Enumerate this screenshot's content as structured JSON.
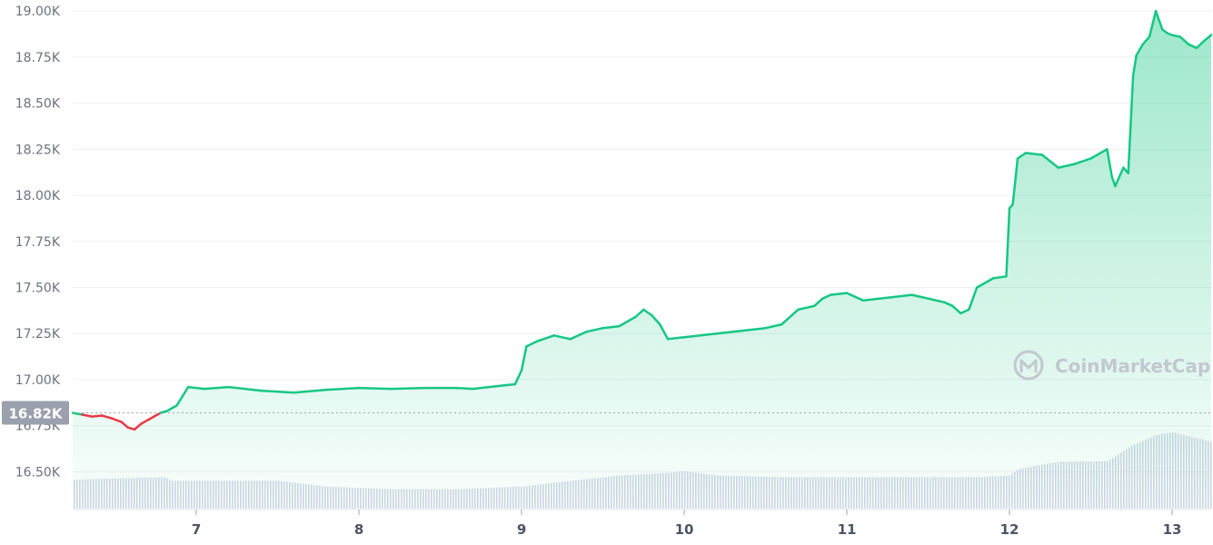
{
  "chart_data": {
    "type": "area",
    "title": "",
    "xlabel": "",
    "ylabel": "",
    "ylim": [
      16300,
      19060
    ],
    "y_ticks": [
      16500,
      16750,
      17000,
      17250,
      17500,
      17750,
      18000,
      18250,
      18500,
      18750,
      19000
    ],
    "y_tick_labels": [
      "16.50K",
      "16.75K",
      "17.00K",
      "17.25K",
      "17.50K",
      "17.75K",
      "18.00K",
      "18.25K",
      "18.50K",
      "18.75K",
      "19.00K"
    ],
    "x_range": [
      6.24,
      13.24
    ],
    "x_ticks": [
      7,
      8,
      9,
      10,
      11,
      12,
      13
    ],
    "x_tick_labels": [
      "7",
      "8",
      "9",
      "10",
      "11",
      "12",
      "13"
    ],
    "reference_value": 16820,
    "reference_label": "16.82K",
    "watermark": "CoinMarketCap",
    "grid": true,
    "colors": {
      "up": "#16c784",
      "down": "#ea3943",
      "volume": "#cfd6e4",
      "grid": "#eef0f3"
    },
    "series": [
      {
        "x": [
          6.24,
          6.3,
          6.36,
          6.42,
          6.48,
          6.54,
          6.58,
          6.62,
          6.66,
          6.7,
          6.74,
          6.78,
          6.82,
          6.88,
          6.95,
          7.05,
          7.2,
          7.4,
          7.6,
          7.8,
          8.0,
          8.2,
          8.4,
          8.6,
          8.7,
          8.8,
          8.9,
          8.96,
          9.0,
          9.03,
          9.1,
          9.2,
          9.3,
          9.4,
          9.5,
          9.6,
          9.7,
          9.75,
          9.8,
          9.85,
          9.9,
          10.0,
          10.1,
          10.2,
          10.3,
          10.4,
          10.5,
          10.6,
          10.7,
          10.8,
          10.85,
          10.9,
          11.0,
          11.1,
          11.2,
          11.3,
          11.4,
          11.5,
          11.6,
          11.65,
          11.7,
          11.75,
          11.8,
          11.9,
          11.98,
          12.0,
          12.02,
          12.05,
          12.1,
          12.2,
          12.3,
          12.4,
          12.5,
          12.6,
          12.63,
          12.65,
          12.7,
          12.73,
          12.76,
          12.78,
          12.82,
          12.86,
          12.9,
          12.94,
          12.97,
          13.0,
          13.05,
          13.1,
          13.15,
          13.2,
          13.24
        ],
        "values": [
          16820,
          16810,
          16800,
          16805,
          16790,
          16770,
          16740,
          16730,
          16760,
          16780,
          16800,
          16820,
          16830,
          16860,
          16960,
          16950,
          16960,
          16940,
          16930,
          16945,
          16955,
          16950,
          16955,
          16955,
          16950,
          16960,
          16970,
          16975,
          17050,
          17180,
          17210,
          17240,
          17220,
          17260,
          17280,
          17290,
          17340,
          17380,
          17350,
          17300,
          17220,
          17230,
          17240,
          17250,
          17260,
          17270,
          17280,
          17300,
          17380,
          17400,
          17440,
          17460,
          17470,
          17430,
          17440,
          17450,
          17460,
          17440,
          17420,
          17400,
          17360,
          17380,
          17500,
          17550,
          17560,
          17930,
          17950,
          18200,
          18230,
          18220,
          18150,
          18170,
          18200,
          18250,
          18100,
          18050,
          18150,
          18120,
          18650,
          18760,
          18820,
          18860,
          19000,
          18900,
          18880,
          18870,
          18860,
          18820,
          18800,
          18840,
          18870
        ]
      }
    ],
    "volume": {
      "x": [
        6.24,
        6.8,
        6.85,
        7.5,
        7.8,
        8.2,
        8.6,
        9.0,
        9.3,
        9.6,
        9.9,
        10.0,
        10.2,
        10.6,
        11.0,
        11.5,
        11.8,
        12.0,
        12.05,
        12.3,
        12.6,
        12.75,
        12.9,
        13.0,
        13.24
      ],
      "values": [
        0.55,
        0.6,
        0.53,
        0.53,
        0.42,
        0.37,
        0.37,
        0.42,
        0.53,
        0.63,
        0.68,
        0.71,
        0.63,
        0.6,
        0.6,
        0.6,
        0.6,
        0.63,
        0.75,
        0.89,
        0.9,
        1.2,
        1.4,
        1.45,
        1.27
      ]
    }
  }
}
